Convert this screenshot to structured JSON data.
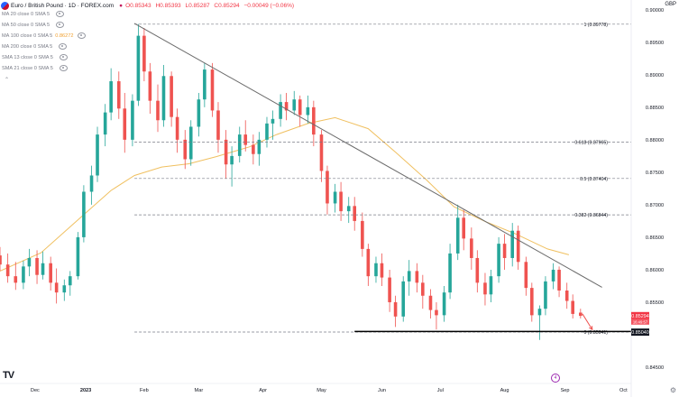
{
  "header": {
    "symbol": "Euro / British Pound · 1D · FOREX.com",
    "marker": "●",
    "ohlc": [
      {
        "label": "O",
        "value": "0.85343"
      },
      {
        "label": "H",
        "value": "0.85393"
      },
      {
        "label": "L",
        "value": "0.85287"
      },
      {
        "label": "C",
        "value": "0.85294"
      },
      {
        "label": "",
        "value": "−0.00049 (−0.06%)"
      }
    ],
    "currency": "GBP"
  },
  "indicators": [
    {
      "label": "MA 20 close 0 SMA 5",
      "value": ""
    },
    {
      "label": "MA 50 close 0 SMA 5",
      "value": ""
    },
    {
      "label": "MA 100 close 0 SMA 5",
      "value": "0.86272"
    },
    {
      "label": "MA 200 close 0 SMA 5",
      "value": ""
    },
    {
      "label": "SMA 13 close 0 SMA 5",
      "value": ""
    },
    {
      "label": "SMA 21 close 0 SMA 5",
      "value": ""
    }
  ],
  "icons": {
    "logo": "TV",
    "collapse": "⌃",
    "event": "4",
    "settings": "⚙"
  },
  "colors": {
    "up": "#26a69a",
    "down": "#ef5350",
    "ma100": "#f0c060",
    "trendline": "#6b6b6b",
    "fib": "#787b86",
    "support": "#000000",
    "arrow": "#ef5350"
  },
  "chart_data": {
    "type": "candlestick",
    "title": "Euro / British Pound · 1D · FOREX.com",
    "x_labels": [
      "Dec",
      "2023",
      "Feb",
      "Mar",
      "Apr",
      "May",
      "Jun",
      "Jul",
      "Aug",
      "Sep",
      "Oct"
    ],
    "y_ticks": [
      "0.90000",
      "0.89500",
      "0.89000",
      "0.88500",
      "0.88000",
      "0.87500",
      "0.87000",
      "0.86500",
      "0.86000",
      "0.85500",
      "0.84500"
    ],
    "ylim": [
      0.8425,
      0.9015
    ],
    "xlim": [
      "2022-11-24",
      "2023-10-14"
    ],
    "current_price": {
      "label": "0.85294",
      "value": 0.85294
    },
    "price_label_2": {
      "label": "0.85040",
      "value": 0.8504
    },
    "small_price_label": "16:49:57",
    "fib_levels": [
      {
        "label": "1 (0.89778)",
        "value": 0.89778
      },
      {
        "label": "0.618 (0.87965)",
        "value": 0.87965
      },
      {
        "label": "0.5 (0.87404)",
        "value": 0.87404
      },
      {
        "label": "0.382 (0.86844)",
        "value": 0.86844
      },
      {
        "label": "0 (0.85041)",
        "value": 0.85041
      }
    ],
    "fib_start": "2023-02-01",
    "trendline": [
      {
        "x": "2023-02-01",
        "y": 0.8979
      },
      {
        "x": "2023-09-29",
        "y": 0.8573
      }
    ],
    "support_line": {
      "x_start": "2023-05-25",
      "x_end": "2023-10-14",
      "y": 0.8505
    },
    "arrow": {
      "from": {
        "x": "2023-09-19",
        "y": 0.8532
      },
      "to": {
        "x": "2023-09-24",
        "y": 0.8508
      }
    },
    "ma100": [
      [
        "2022-11-24",
        0.8598
      ],
      [
        "2022-12-15",
        0.8626
      ],
      [
        "2023-01-05",
        0.8682
      ],
      [
        "2023-01-20",
        0.8722
      ],
      [
        "2023-02-01",
        0.8745
      ],
      [
        "2023-02-15",
        0.8758
      ],
      [
        "2023-03-01",
        0.8763
      ],
      [
        "2023-03-15",
        0.8774
      ],
      [
        "2023-04-01",
        0.8789
      ],
      [
        "2023-04-15",
        0.8808
      ],
      [
        "2023-05-01",
        0.8825
      ],
      [
        "2023-05-15",
        0.8834
      ],
      [
        "2023-06-01",
        0.8817
      ],
      [
        "2023-06-15",
        0.8781
      ],
      [
        "2023-07-01",
        0.8738
      ],
      [
        "2023-07-15",
        0.8697
      ],
      [
        "2023-08-01",
        0.8673
      ],
      [
        "2023-08-15",
        0.8656
      ],
      [
        "2023-09-01",
        0.8632
      ],
      [
        "2023-09-12",
        0.8623
      ]
    ],
    "ohlc_series": [
      [
        "2022-11-24",
        0.8622,
        0.8635,
        0.8598,
        0.8608
      ],
      [
        "2022-11-28",
        0.8608,
        0.8625,
        0.858,
        0.859
      ],
      [
        "2022-12-02",
        0.859,
        0.8612,
        0.8569,
        0.858
      ],
      [
        "2022-12-06",
        0.858,
        0.8614,
        0.857,
        0.8605
      ],
      [
        "2022-12-09",
        0.8605,
        0.8632,
        0.859,
        0.8618
      ],
      [
        "2022-12-13",
        0.8618,
        0.863,
        0.8578,
        0.8592
      ],
      [
        "2022-12-16",
        0.8592,
        0.8628,
        0.8585,
        0.861
      ],
      [
        "2022-12-20",
        0.861,
        0.862,
        0.8568,
        0.858
      ],
      [
        "2022-12-23",
        0.858,
        0.8602,
        0.8548,
        0.8565
      ],
      [
        "2022-12-27",
        0.8565,
        0.8585,
        0.8552,
        0.8576
      ],
      [
        "2022-12-30",
        0.8576,
        0.8598,
        0.856,
        0.859
      ],
      [
        "2023-01-03",
        0.859,
        0.8658,
        0.8585,
        0.865
      ],
      [
        "2023-01-06",
        0.865,
        0.873,
        0.8642,
        0.872
      ],
      [
        "2023-01-10",
        0.872,
        0.876,
        0.87,
        0.8745
      ],
      [
        "2023-01-13",
        0.8745,
        0.882,
        0.8735,
        0.8808
      ],
      [
        "2023-01-17",
        0.8808,
        0.8855,
        0.879,
        0.8842
      ],
      [
        "2023-01-20",
        0.8842,
        0.891,
        0.883,
        0.889
      ],
      [
        "2023-01-24",
        0.889,
        0.8905,
        0.8832,
        0.8848
      ],
      [
        "2023-01-27",
        0.8848,
        0.8872,
        0.878,
        0.88
      ],
      [
        "2023-01-31",
        0.88,
        0.887,
        0.879,
        0.886
      ],
      [
        "2023-02-03",
        0.886,
        0.8978,
        0.8852,
        0.896
      ],
      [
        "2023-02-06",
        0.896,
        0.8972,
        0.889,
        0.8905
      ],
      [
        "2023-02-09",
        0.8905,
        0.8918,
        0.884,
        0.886
      ],
      [
        "2023-02-13",
        0.886,
        0.8885,
        0.8812,
        0.883
      ],
      [
        "2023-02-16",
        0.883,
        0.8915,
        0.882,
        0.8898
      ],
      [
        "2023-02-20",
        0.8898,
        0.8905,
        0.882,
        0.8835
      ],
      [
        "2023-02-23",
        0.8835,
        0.8848,
        0.878,
        0.88
      ],
      [
        "2023-02-27",
        0.88,
        0.8815,
        0.8755,
        0.877
      ],
      [
        "2023-03-02",
        0.877,
        0.883,
        0.876,
        0.882
      ],
      [
        "2023-03-06",
        0.882,
        0.8872,
        0.8805,
        0.8862
      ],
      [
        "2023-03-09",
        0.8862,
        0.8918,
        0.885,
        0.8908
      ],
      [
        "2023-03-13",
        0.8908,
        0.8918,
        0.8835,
        0.8845
      ],
      [
        "2023-03-16",
        0.8845,
        0.8858,
        0.878,
        0.88
      ],
      [
        "2023-03-20",
        0.88,
        0.8815,
        0.874,
        0.8762
      ],
      [
        "2023-03-23",
        0.8762,
        0.879,
        0.8728,
        0.8775
      ],
      [
        "2023-03-27",
        0.8775,
        0.882,
        0.8765,
        0.8808
      ],
      [
        "2023-03-30",
        0.8808,
        0.883,
        0.8782,
        0.8792
      ],
      [
        "2023-04-03",
        0.8792,
        0.8808,
        0.8762,
        0.8778
      ],
      [
        "2023-04-06",
        0.8778,
        0.8812,
        0.876,
        0.88
      ],
      [
        "2023-04-10",
        0.88,
        0.8835,
        0.8788,
        0.8825
      ],
      [
        "2023-04-13",
        0.8825,
        0.8845,
        0.88,
        0.8832
      ],
      [
        "2023-04-17",
        0.8832,
        0.887,
        0.882,
        0.8858
      ],
      [
        "2023-04-20",
        0.8858,
        0.8872,
        0.883,
        0.8845
      ],
      [
        "2023-04-24",
        0.8845,
        0.8875,
        0.8838,
        0.8862
      ],
      [
        "2023-04-27",
        0.8862,
        0.8868,
        0.882,
        0.8838
      ],
      [
        "2023-05-01",
        0.8838,
        0.8868,
        0.8825,
        0.885
      ],
      [
        "2023-05-04",
        0.885,
        0.886,
        0.879,
        0.8808
      ],
      [
        "2023-05-08",
        0.8808,
        0.8815,
        0.8735,
        0.8752
      ],
      [
        "2023-05-11",
        0.8752,
        0.876,
        0.8685,
        0.8702
      ],
      [
        "2023-05-15",
        0.8702,
        0.8732,
        0.8688,
        0.872
      ],
      [
        "2023-05-18",
        0.872,
        0.8735,
        0.8675,
        0.869
      ],
      [
        "2023-05-22",
        0.869,
        0.8712,
        0.8672,
        0.8698
      ],
      [
        "2023-05-25",
        0.8698,
        0.8712,
        0.866,
        0.8675
      ],
      [
        "2023-05-29",
        0.8675,
        0.8688,
        0.862,
        0.8632
      ],
      [
        "2023-06-01",
        0.8632,
        0.864,
        0.8575,
        0.859
      ],
      [
        "2023-06-05",
        0.859,
        0.862,
        0.858,
        0.861
      ],
      [
        "2023-06-08",
        0.861,
        0.8625,
        0.8575,
        0.8588
      ],
      [
        "2023-06-12",
        0.8588,
        0.86,
        0.8535,
        0.855
      ],
      [
        "2023-06-15",
        0.855,
        0.856,
        0.8512,
        0.8528
      ],
      [
        "2023-06-19",
        0.8528,
        0.859,
        0.852,
        0.8582
      ],
      [
        "2023-06-22",
        0.8582,
        0.8615,
        0.856,
        0.8598
      ],
      [
        "2023-06-26",
        0.8598,
        0.861,
        0.8565,
        0.858
      ],
      [
        "2023-06-29",
        0.858,
        0.8592,
        0.854,
        0.856
      ],
      [
        "2023-07-03",
        0.856,
        0.857,
        0.8525,
        0.8538
      ],
      [
        "2023-07-06",
        0.8538,
        0.855,
        0.8508,
        0.853
      ],
      [
        "2023-07-10",
        0.853,
        0.8575,
        0.852,
        0.8565
      ],
      [
        "2023-07-13",
        0.8565,
        0.864,
        0.8555,
        0.8625
      ],
      [
        "2023-07-17",
        0.8625,
        0.87,
        0.8615,
        0.868
      ],
      [
        "2023-07-20",
        0.868,
        0.8692,
        0.863,
        0.8648
      ],
      [
        "2023-07-24",
        0.8648,
        0.8665,
        0.86,
        0.8618
      ],
      [
        "2023-07-27",
        0.8618,
        0.863,
        0.8565,
        0.858
      ],
      [
        "2023-07-31",
        0.858,
        0.8595,
        0.8545,
        0.8562
      ],
      [
        "2023-08-03",
        0.8562,
        0.86,
        0.855,
        0.859
      ],
      [
        "2023-08-07",
        0.859,
        0.865,
        0.858,
        0.864
      ],
      [
        "2023-08-10",
        0.864,
        0.8655,
        0.86,
        0.8618
      ],
      [
        "2023-08-14",
        0.8618,
        0.8672,
        0.8605,
        0.866
      ],
      [
        "2023-08-17",
        0.866,
        0.8668,
        0.86,
        0.8612
      ],
      [
        "2023-08-21",
        0.8612,
        0.862,
        0.856,
        0.8572
      ],
      [
        "2023-08-24",
        0.8572,
        0.858,
        0.852,
        0.853
      ],
      [
        "2023-08-28",
        0.853,
        0.8545,
        0.8492,
        0.854
      ],
      [
        "2023-08-31",
        0.854,
        0.859,
        0.853,
        0.8582
      ],
      [
        "2023-09-04",
        0.8582,
        0.861,
        0.857,
        0.86
      ],
      [
        "2023-09-07",
        0.86,
        0.8605,
        0.8558,
        0.8568
      ],
      [
        "2023-09-11",
        0.8568,
        0.858,
        0.854,
        0.8552
      ],
      [
        "2023-09-14",
        0.8552,
        0.8562,
        0.8525,
        0.8532
      ],
      [
        "2023-09-18",
        0.8534,
        0.854,
        0.8525,
        0.8529
      ]
    ]
  }
}
